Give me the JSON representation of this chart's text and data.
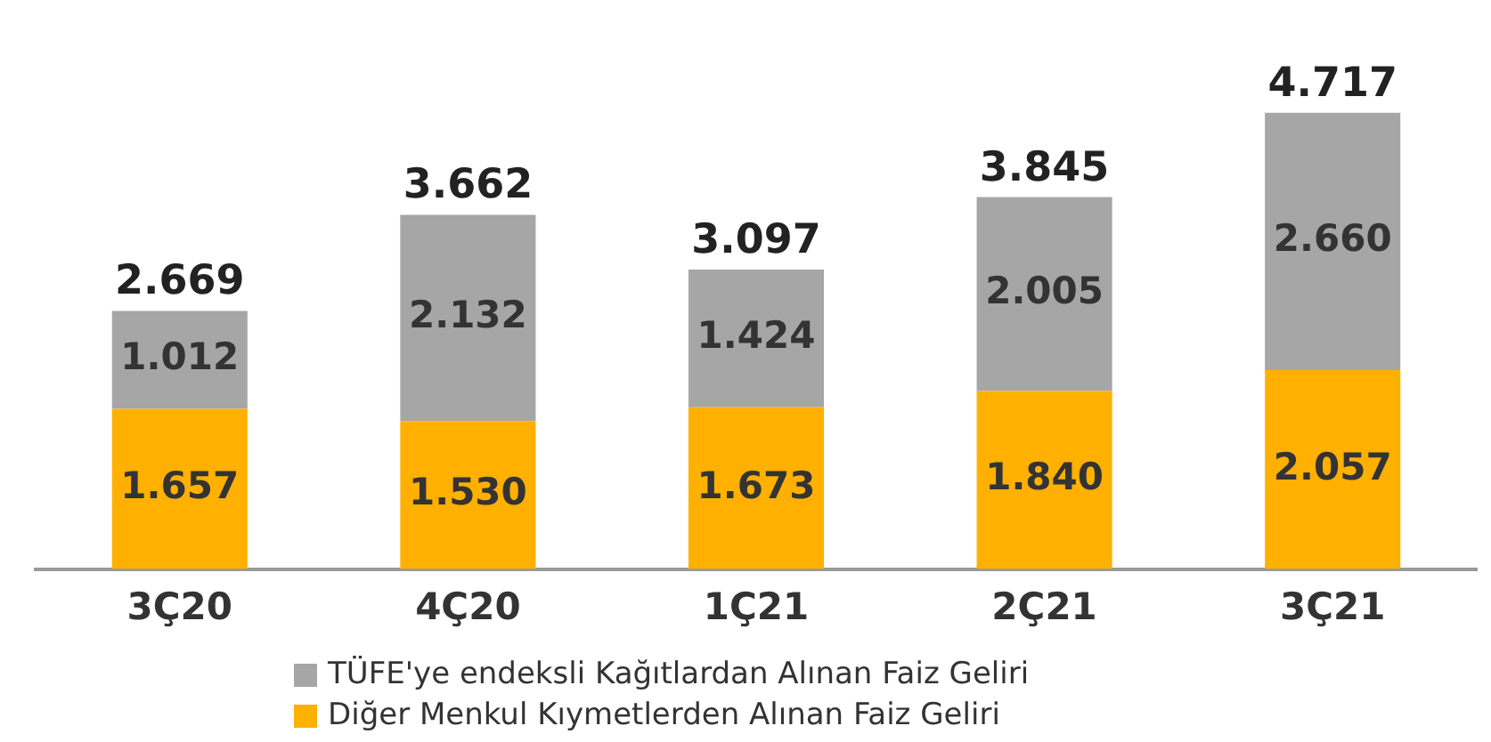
{
  "chart_data": {
    "type": "bar",
    "stacked": true,
    "categories": [
      "3Ç20",
      "4Ç20",
      "1Ç21",
      "2Ç21",
      "3Ç21"
    ],
    "series": [
      {
        "name": "Diğer Menkul Kıymetlerden Alınan Faiz Geliri",
        "color": "#ffb000",
        "values": [
          1657,
          1530,
          1673,
          1840,
          2057
        ],
        "value_labels": [
          "1.657",
          "1.530",
          "1.673",
          "1.840",
          "2.057"
        ]
      },
      {
        "name": "TÜFE'ye endeksli Kağıtlardan Alınan Faiz Geliri",
        "color": "#a6a6a6",
        "values": [
          1012,
          2132,
          1424,
          2005,
          2660
        ],
        "value_labels": [
          "1.012",
          "2.132",
          "1.424",
          "2.005",
          "2.660"
        ]
      }
    ],
    "totals": [
      "2.669",
      "3.662",
      "3.097",
      "3.845",
      "4.717"
    ],
    "legend": "bottom",
    "grid": false
  }
}
